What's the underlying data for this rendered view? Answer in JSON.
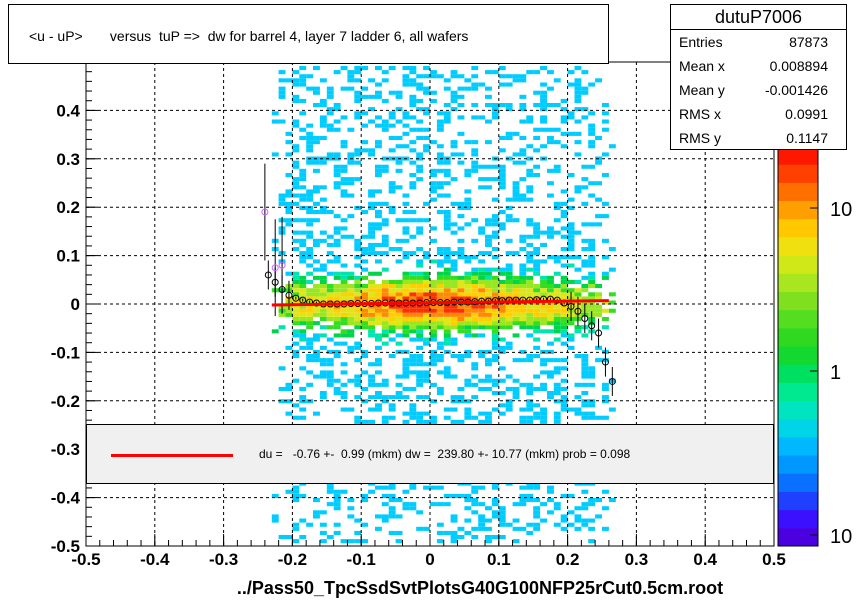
{
  "title": "<u - uP>       versus  tuP =>  dw for barrel 4, layer 7 ladder 6, all wafers",
  "stats": {
    "name": "dutuP7006",
    "rows": [
      {
        "key": "Entries",
        "value": "87873"
      },
      {
        "key": "Mean x",
        "value": "0.008894"
      },
      {
        "key": "Mean y",
        "value": "-0.001426"
      },
      {
        "key": "RMS x",
        "value": "0.0991"
      },
      {
        "key": "RMS y",
        "value": "0.1147"
      }
    ]
  },
  "fit_legend": "du =   -0.76 +-  0.99 (mkm) dw =  239.80 +- 10.77 (mkm) prob = 0.098",
  "colors": {
    "fit_line": "#ff0000",
    "profile_markers": "#000000",
    "profile_markers_alt": "#cc66ff"
  },
  "chart_data": {
    "type": "heatmap",
    "xlabel": "../Pass50_TpcSsdSvtPlotsG40G100NFP25rCut0.5cm.root",
    "xlim": [
      -0.5,
      0.5
    ],
    "ylim": [
      -0.5,
      0.5
    ],
    "x_ticks": [
      "-0.5",
      "-0.4",
      "-0.3",
      "-0.2",
      "-0.1",
      "0",
      "0.1",
      "0.2",
      "0.3",
      "0.4",
      "0.5"
    ],
    "y_ticks": [
      "-0.5",
      "-0.4",
      "-0.3",
      "-0.2",
      "-0.1",
      "0",
      "0.1",
      "0.2",
      "0.3",
      "0.4"
    ],
    "z_scale": "log",
    "z_ticks": [
      "10",
      "1",
      "10"
    ],
    "grid": true,
    "data_x_range": [
      -0.24,
      0.27
    ],
    "fit": {
      "type": "line",
      "x": [
        -0.23,
        0.26
      ],
      "y": [
        -0.002,
        0.007
      ]
    },
    "profile": {
      "x": [
        -0.235,
        -0.225,
        -0.215,
        -0.205,
        -0.195,
        -0.185,
        -0.175,
        -0.165,
        -0.155,
        -0.145,
        -0.135,
        -0.125,
        -0.115,
        -0.105,
        -0.095,
        -0.085,
        -0.075,
        -0.065,
        -0.055,
        -0.045,
        -0.035,
        -0.025,
        -0.015,
        -0.005,
        0.005,
        0.015,
        0.025,
        0.035,
        0.045,
        0.055,
        0.065,
        0.075,
        0.085,
        0.095,
        0.105,
        0.115,
        0.125,
        0.135,
        0.145,
        0.155,
        0.165,
        0.175,
        0.185,
        0.195,
        0.205,
        0.215,
        0.225,
        0.235,
        0.245,
        0.255,
        0.265
      ],
      "y": [
        0.06,
        0.045,
        0.03,
        0.018,
        0.012,
        0.008,
        0.004,
        0.002,
        0.0,
        0.0,
        0.0,
        0.0,
        0.001,
        0.001,
        0.001,
        0.001,
        0.002,
        0.002,
        0.002,
        0.002,
        0.002,
        0.002,
        0.002,
        0.003,
        0.003,
        0.003,
        0.003,
        0.004,
        0.004,
        0.004,
        0.005,
        0.006,
        0.006,
        0.007,
        0.007,
        0.008,
        0.008,
        0.008,
        0.008,
        0.009,
        0.01,
        0.01,
        0.008,
        0.002,
        -0.005,
        -0.015,
        -0.03,
        -0.045,
        -0.06,
        -0.12,
        -0.16
      ]
    },
    "profile_outliers": {
      "x": [
        -0.24,
        -0.225,
        -0.215
      ],
      "y": [
        0.19,
        0.075,
        0.08
      ]
    }
  }
}
